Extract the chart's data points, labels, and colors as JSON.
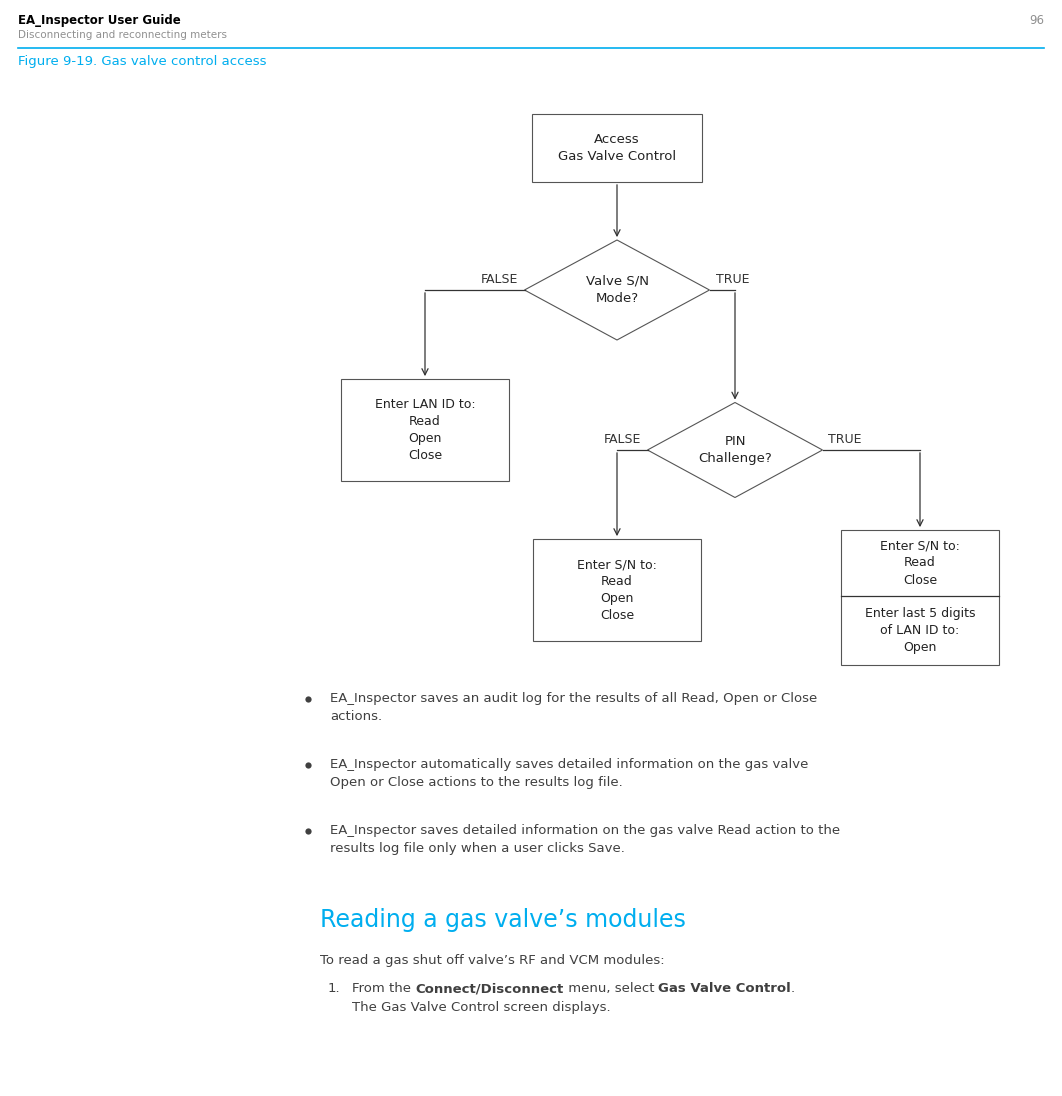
{
  "page_title": "EA_Inspector User Guide",
  "page_subtitle": "Disconnecting and reconnecting meters",
  "page_number": "96",
  "figure_title": "Figure 9-19. Gas valve control access",
  "header_color": "#000000",
  "subtitle_color": "#808080",
  "figure_title_color": "#00AEEF",
  "separator_color": "#00AEEF",
  "section_heading": "Reading a gas valve’s modules",
  "section_heading_color": "#00AEEF",
  "body_text_color": "#404040",
  "bullet_points": [
    "EA_Inspector saves an audit log for the results of all Read, Open or Close\nactions.",
    "EA_Inspector automatically saves detailed information on the gas valve\nOpen or Close actions to the results log file.",
    "EA_Inspector saves detailed information on the gas valve Read action to the\nresults log file only when a user clicks Save."
  ],
  "section_intro": "To read a gas shut off valve’s RF and VCM modules:",
  "numbered_items": [
    {
      "number": "1.",
      "line1_pre": "From the ",
      "line1_bold1": "Connect/Disconnect",
      "line1_mid": " menu, select ",
      "line1_bold2": "Gas Valve Control",
      "line1_post": ".",
      "subtext": "The Gas Valve Control screen displays."
    }
  ]
}
